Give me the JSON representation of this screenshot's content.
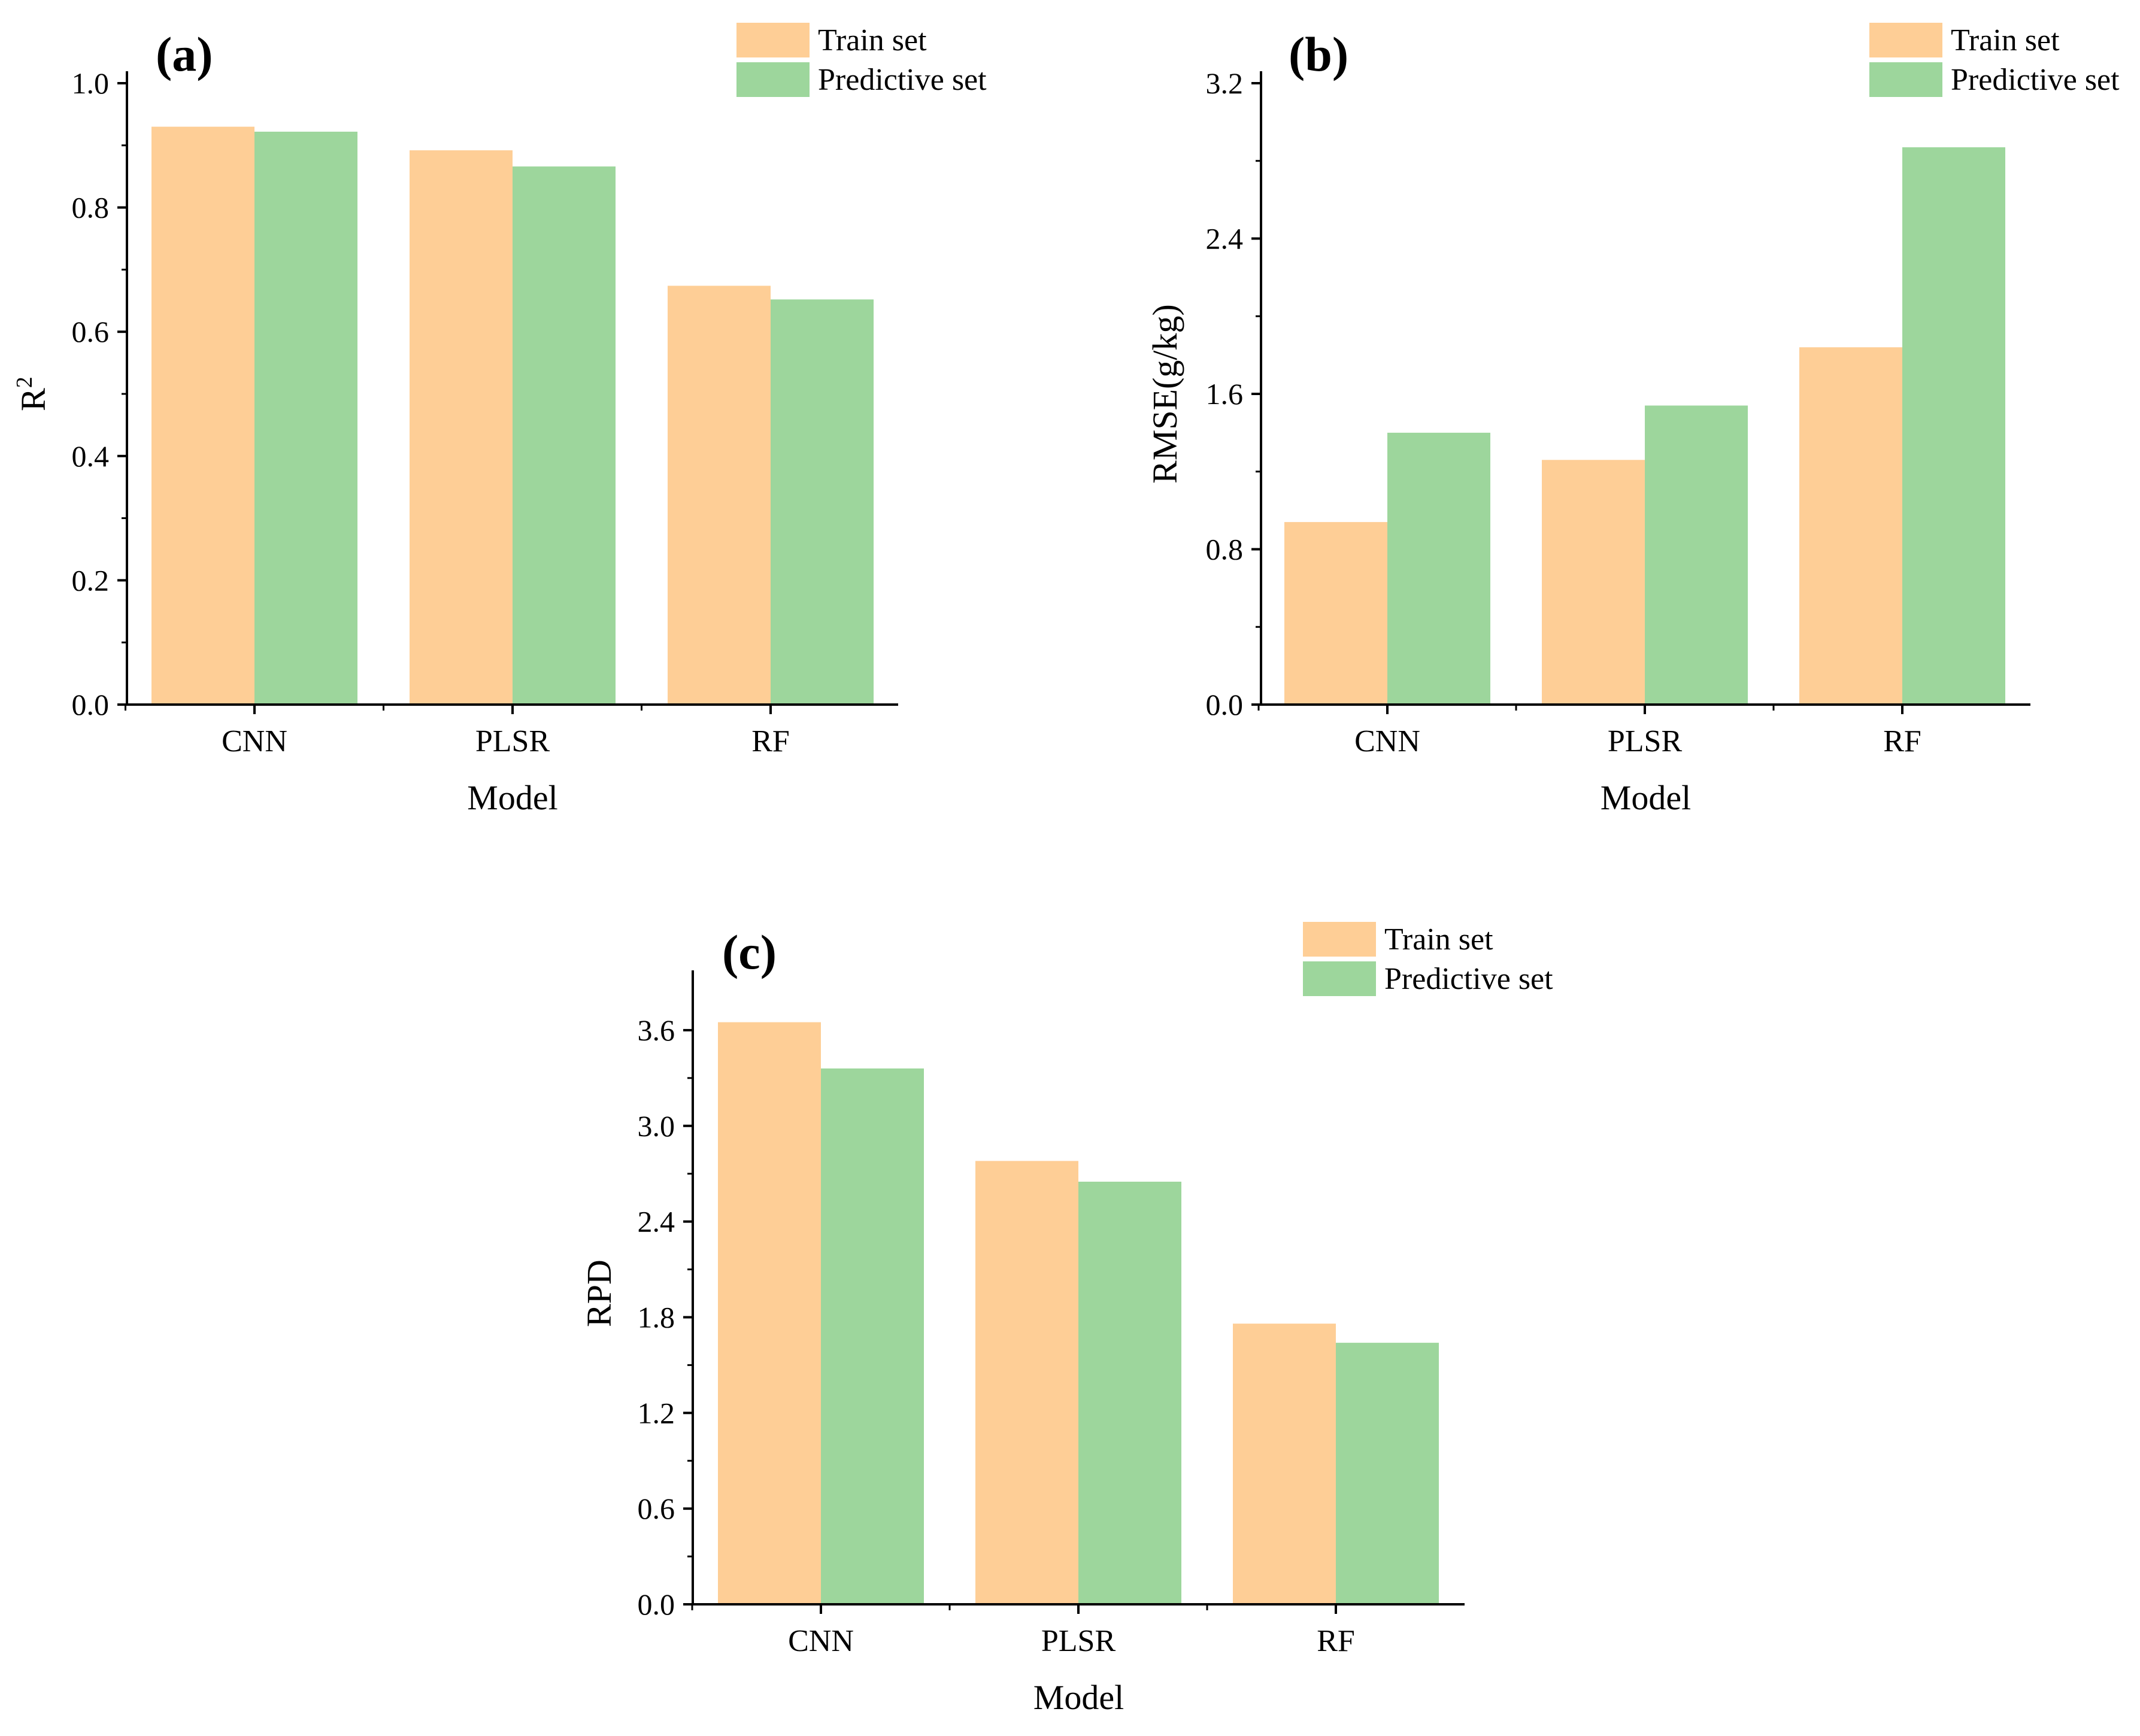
{
  "colors": {
    "train": "#FECE96",
    "predictive": "#9DD69C"
  },
  "legend": [
    "Train set",
    "Predictive set"
  ],
  "chart_data": [
    {
      "panel": "(a)",
      "type": "bar",
      "categories": [
        "CNN",
        "PLSR",
        "RF"
      ],
      "series": [
        {
          "name": "Train set",
          "values": [
            0.93,
            0.892,
            0.674
          ]
        },
        {
          "name": "Predictive set",
          "values": [
            0.922,
            0.866,
            0.652
          ]
        }
      ],
      "xlabel": "Model",
      "ylabel_base": "R",
      "ylabel_sup": "2",
      "ylim": [
        0,
        1.0
      ],
      "yticks": [
        0.0,
        0.2,
        0.4,
        0.6,
        0.8,
        1.0
      ],
      "ytick_labels": [
        "0.0",
        "0.2",
        "0.4",
        "0.6",
        "0.8",
        "1.0"
      ]
    },
    {
      "panel": "(b)",
      "type": "bar",
      "categories": [
        "CNN",
        "PLSR",
        "RF"
      ],
      "series": [
        {
          "name": "Train set",
          "values": [
            0.94,
            1.26,
            1.84
          ]
        },
        {
          "name": "Predictive set",
          "values": [
            1.4,
            1.54,
            2.87
          ]
        }
      ],
      "xlabel": "Model",
      "ylabel_base": "RMSE(g/kg)",
      "ylabel_sup": "",
      "ylim": [
        0,
        3.2
      ],
      "yticks": [
        0.0,
        0.8,
        1.6,
        2.4,
        3.2
      ],
      "ytick_labels": [
        "0.0",
        "0.8",
        "1.6",
        "2.4",
        "3.2"
      ]
    },
    {
      "panel": "(c)",
      "type": "bar",
      "categories": [
        "CNN",
        "PLSR",
        "RF"
      ],
      "series": [
        {
          "name": "Train set",
          "values": [
            3.65,
            2.78,
            1.76
          ]
        },
        {
          "name": "Predictive set",
          "values": [
            3.36,
            2.65,
            1.64
          ]
        }
      ],
      "xlabel": "Model",
      "ylabel_base": "RPD",
      "ylabel_sup": "",
      "ylim": [
        0,
        3.9
      ],
      "yticks": [
        0.0,
        0.6,
        1.2,
        1.8,
        2.4,
        3.0,
        3.6
      ],
      "ytick_labels": [
        "0.0",
        "0.6",
        "1.2",
        "1.8",
        "2.4",
        "3.0",
        "3.6"
      ]
    }
  ]
}
